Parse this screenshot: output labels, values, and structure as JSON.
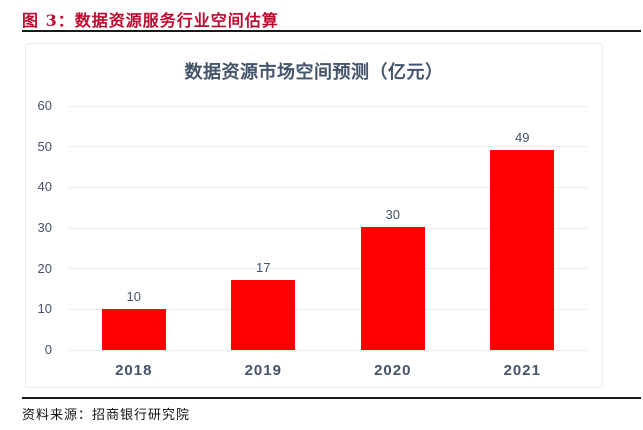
{
  "figure": {
    "title": "图 3：数据资源服务行业空间估算"
  },
  "footer": {
    "source": "资料来源：招商银行研究院"
  },
  "colors": {
    "header_red": "#bf0a30",
    "rule_dark": "#1a1a1a",
    "bar_red": "#ff0000",
    "chart_text": "#44546a",
    "gridline": "#e9ecf4",
    "panel_border": "#e9ebf3",
    "source_text": "#111111"
  },
  "chart_data": {
    "type": "bar",
    "title": "数据资源市场空间预测（亿元）",
    "categories": [
      "2018",
      "2019",
      "2020",
      "2021"
    ],
    "values": [
      10,
      17,
      30,
      49
    ],
    "values_precise": [
      10.1,
      17.2,
      30.3,
      49.3
    ],
    "data_labels": [
      "10",
      "17",
      "30",
      "49"
    ],
    "xlabel": "",
    "ylabel": "",
    "ylim": [
      0,
      60
    ],
    "yticks": [
      0,
      10,
      20,
      30,
      40,
      50,
      60
    ],
    "grid": "horizontal",
    "legend": "none",
    "bar_color": "#ff0000"
  }
}
